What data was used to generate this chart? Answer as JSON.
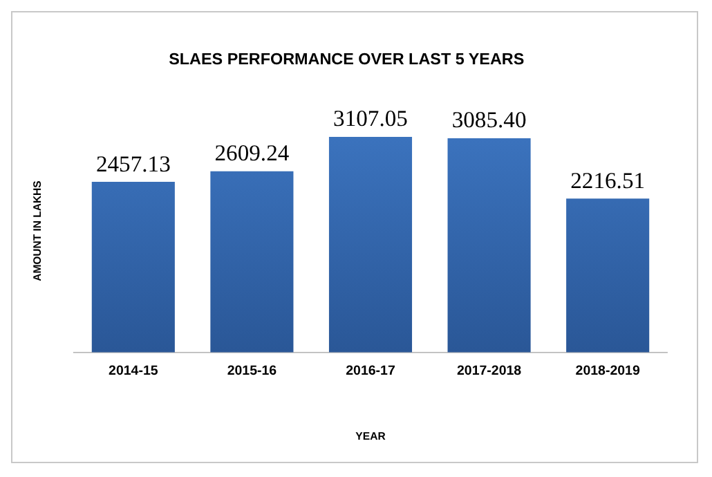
{
  "chart_data": {
    "type": "bar",
    "title": "SLAES PERFORMANCE OVER LAST 5 YEARS",
    "xlabel": "YEAR",
    "ylabel": "AMOUNT IN LAKHS",
    "categories": [
      "2014-15",
      "2015-16",
      "2016-17",
      "2017-2018",
      "2018-2019"
    ],
    "values": [
      2457.13,
      2609.24,
      3107.05,
      3085.4,
      2216.51
    ],
    "value_labels": [
      "2457.13",
      "2609.24",
      "3107.05",
      "3085.40",
      "2216.51"
    ],
    "color": "#3d76c2",
    "tick_labels": "x",
    "grid": false,
    "legend": false
  }
}
